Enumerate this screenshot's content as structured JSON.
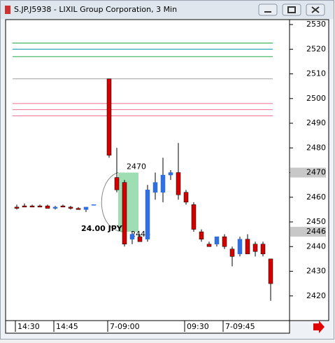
{
  "chart_data": {
    "type": "candlestick",
    "title": "S.JP.J5938 - LIXIL Group Corporation, 3 Min",
    "categories": [
      "14:30",
      null,
      null,
      null,
      null,
      "14:45",
      null,
      null,
      null,
      null,
      null,
      null,
      "7-09:00",
      null,
      null,
      null,
      null,
      null,
      null,
      null,
      null,
      null,
      "09:30",
      null,
      null,
      null,
      null,
      "7-09:45",
      null,
      null,
      null,
      null,
      null,
      null
    ],
    "open": [
      2456,
      2456.5,
      2456.5,
      2456.5,
      2456.5,
      2455.5,
      2456.5,
      2456,
      2455.5,
      2455,
      2457,
      null,
      2508,
      2468,
      2466,
      2443,
      2444,
      2443,
      2462,
      2462,
      2469,
      2470,
      2462,
      2457,
      2446,
      2441,
      2441,
      2444,
      2439,
      2437,
      2443,
      2441,
      2441,
      2435
    ],
    "high": [
      2457,
      2457.5,
      2457,
      2457,
      2457,
      2456.5,
      2457,
      2456.5,
      2456,
      2456,
      2457,
      null,
      2508,
      2480,
      2467,
      2446,
      2445,
      2465,
      2470,
      2476,
      2471,
      2482,
      2463,
      2458,
      2447,
      2442,
      2444,
      2445,
      2440,
      2444,
      2445,
      2442,
      2442,
      2435
    ],
    "low": [
      2455,
      2456,
      2456,
      2456,
      2455.5,
      2455,
      2456,
      2455,
      2455,
      2454,
      2457,
      null,
      2476,
      2462,
      2440,
      2441,
      2442,
      2442,
      2459,
      2458,
      2467,
      2459,
      2457,
      2446,
      2442,
      2440,
      2440,
      2439,
      2432,
      2436,
      2437,
      2436,
      2436,
      2418
    ],
    "close": [
      2455.5,
      2456,
      2456,
      2456,
      2455.5,
      2456,
      2456,
      2455.5,
      2455,
      2456,
      2457,
      null,
      2477,
      2463,
      2441,
      2445,
      2442,
      2463,
      2466,
      2469,
      2470,
      2461,
      2458,
      2447,
      2443,
      2440,
      2444,
      2440,
      2436,
      2443,
      2437,
      2438,
      2437,
      2425
    ],
    "up_color": "#2f6fe0",
    "down_color": "#d40000",
    "levels": [
      {
        "value": 2522.5,
        "color": "#22aa44"
      },
      {
        "value": 2520,
        "color": "#0090b0"
      },
      {
        "value": 2517,
        "color": "#22aa44"
      },
      {
        "value": 2508,
        "color": "#a0a0a0"
      },
      {
        "value": 2498,
        "color": "#f07090"
      },
      {
        "value": 2495.5,
        "color": "#f07090"
      },
      {
        "value": 2493,
        "color": "#f07090"
      }
    ],
    "measure": {
      "from": 2470,
      "to": 2446,
      "label": "24.00 JPY",
      "color": "#7fd39a"
    },
    "price_markers": [
      2470,
      2446
    ],
    "ylim": [
      2410,
      2532
    ],
    "yticks": [
      2420,
      2430,
      2440,
      2450,
      2460,
      2470,
      2480,
      2490,
      2500,
      2510,
      2520,
      2530
    ]
  }
}
